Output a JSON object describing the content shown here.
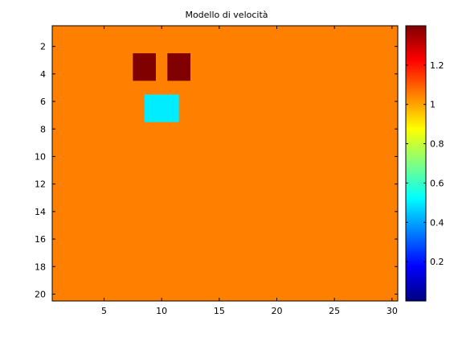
{
  "chart_data": {
    "type": "heatmap",
    "title": "Modello di velocità",
    "xlabel": "",
    "ylabel": "",
    "grid": false,
    "xlim": [
      0.5,
      30.5
    ],
    "ylim": [
      0.5,
      20.5
    ],
    "y_reversed": true,
    "x_ticks": [
      5,
      10,
      15,
      20,
      25,
      30
    ],
    "y_ticks": [
      2,
      4,
      6,
      8,
      10,
      12,
      14,
      16,
      18,
      20
    ],
    "colorbar": {
      "colormap": "jet",
      "clim": [
        0.0,
        1.4
      ],
      "ticks": [
        0.2,
        0.4,
        0.6,
        0.8,
        1.0,
        1.2
      ],
      "tick_labels": [
        "0.2",
        "0.4",
        "0.6",
        "0.8",
        "1",
        "1.2"
      ]
    },
    "grid_size": {
      "cols": 30,
      "rows": 20
    },
    "background_value": 1.05,
    "anomalies": [
      {
        "name": "high-velocity-block-1",
        "cols": [
          8,
          9
        ],
        "rows": [
          3,
          4
        ],
        "value": 1.4
      },
      {
        "name": "high-velocity-block-2",
        "cols": [
          11,
          12
        ],
        "rows": [
          3,
          4
        ],
        "value": 1.4
      },
      {
        "name": "low-velocity-block",
        "cols": [
          9,
          11
        ],
        "rows": [
          6,
          7
        ],
        "value": 0.5
      }
    ]
  }
}
